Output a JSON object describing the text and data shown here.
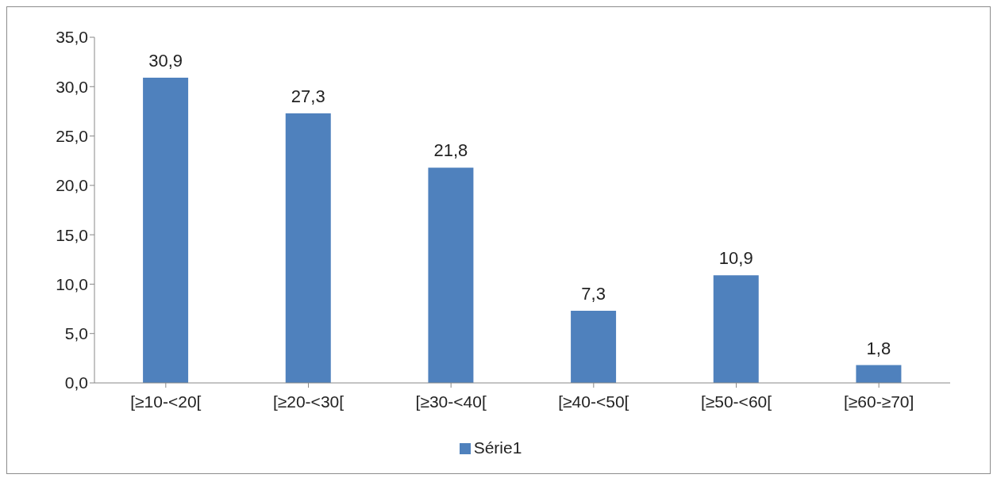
{
  "chart_data": {
    "type": "bar",
    "categories": [
      "[≥10-<20[",
      "[≥20-<30[",
      "[≥30-<40[",
      "[≥40-<50[",
      "[≥50-<60[",
      "[≥60-≥70]"
    ],
    "series": [
      {
        "name": "Série1",
        "color": "#4f81bd",
        "values": [
          30.9,
          27.3,
          21.8,
          7.3,
          10.9,
          1.8
        ]
      }
    ],
    "value_labels": [
      "30,9",
      "27,3",
      "21,8",
      "7,3",
      "10,9",
      "1,8"
    ],
    "ylim": [
      0,
      35
    ],
    "yticks": [
      {
        "value": 0,
        "label": "0,0"
      },
      {
        "value": 5,
        "label": "5,0"
      },
      {
        "value": 10,
        "label": "10,0"
      },
      {
        "value": 15,
        "label": "15,0"
      },
      {
        "value": 20,
        "label": "20,0"
      },
      {
        "value": 25,
        "label": "25,0"
      },
      {
        "value": 30,
        "label": "30,0"
      },
      {
        "value": 35,
        "label": "35,0"
      }
    ],
    "grid": false,
    "legend": "bottom"
  }
}
